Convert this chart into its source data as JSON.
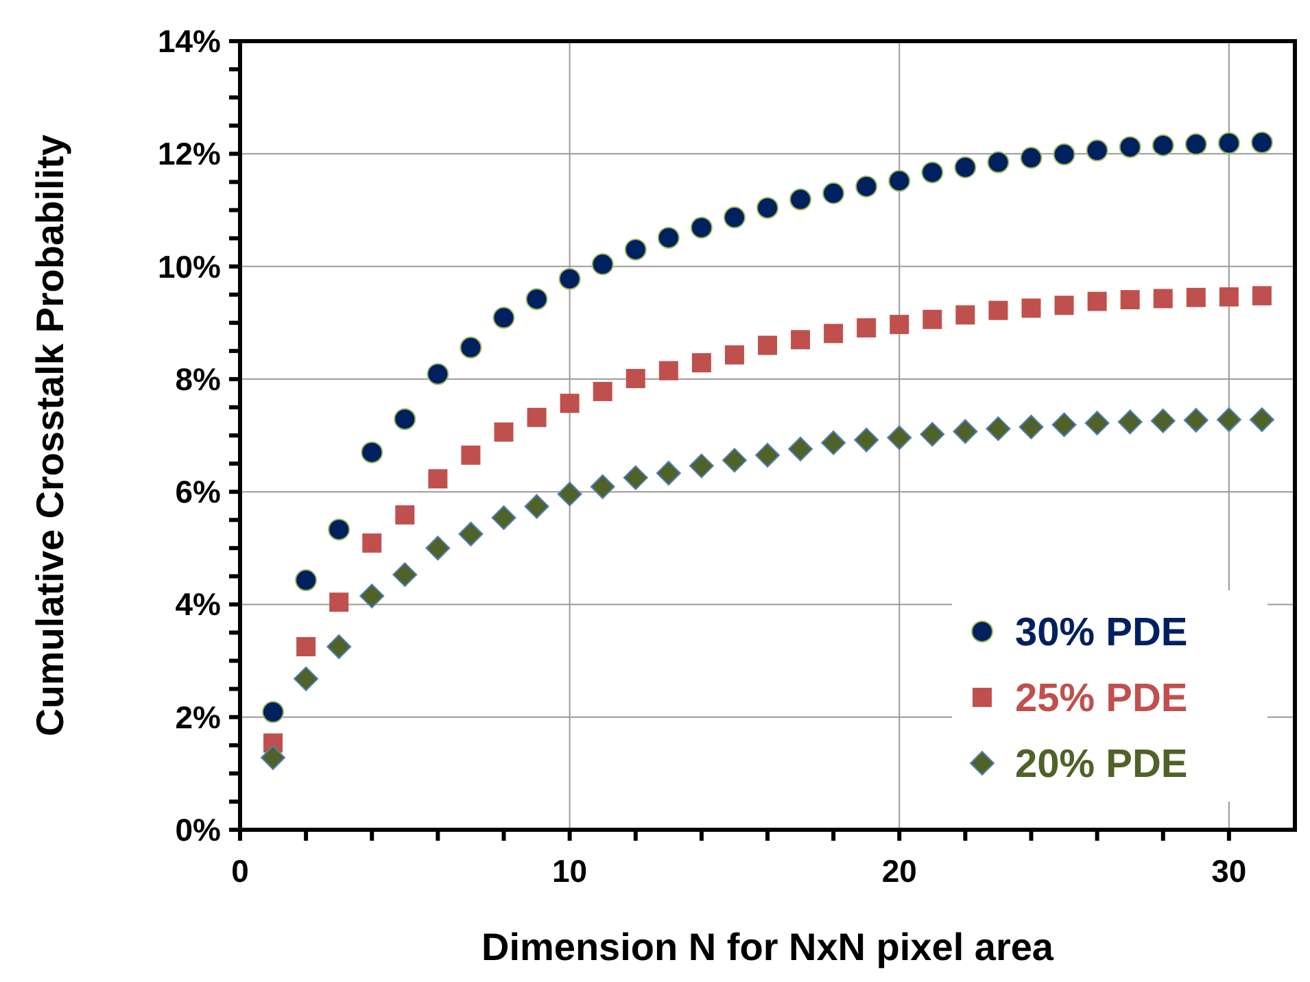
{
  "chart_data": {
    "type": "scatter",
    "xlabel": "Dimension N for NxN pixel area",
    "ylabel": "Cumulative Crosstalk Probability",
    "x": [
      1,
      2,
      3,
      4,
      5,
      6,
      7,
      8,
      9,
      10,
      11,
      12,
      13,
      14,
      15,
      16,
      17,
      18,
      19,
      20,
      21,
      22,
      23,
      24,
      25,
      26,
      27,
      28,
      29,
      30,
      31
    ],
    "series": [
      {
        "name": "30% PDE",
        "color": "#002060",
        "marker": "circle",
        "values": [
          2.09,
          4.43,
          5.33,
          6.7,
          7.29,
          8.09,
          8.56,
          9.09,
          9.42,
          9.78,
          10.04,
          10.3,
          10.51,
          10.69,
          10.87,
          11.04,
          11.19,
          11.3,
          11.42,
          11.52,
          11.67,
          11.76,
          11.85,
          11.93,
          11.99,
          12.06,
          12.12,
          12.15,
          12.17,
          12.19,
          12.2
        ]
      },
      {
        "name": "25% PDE",
        "color": "#c0504d",
        "marker": "square",
        "values": [
          1.54,
          3.25,
          4.04,
          5.09,
          5.59,
          6.23,
          6.65,
          7.06,
          7.32,
          7.57,
          7.78,
          8.01,
          8.15,
          8.29,
          8.43,
          8.6,
          8.7,
          8.81,
          8.91,
          8.97,
          9.06,
          9.14,
          9.22,
          9.26,
          9.31,
          9.38,
          9.41,
          9.43,
          9.45,
          9.46,
          9.48
        ]
      },
      {
        "name": "20% PDE",
        "color": "#4f6228",
        "marker": "diamond",
        "values": [
          1.28,
          2.68,
          3.25,
          4.15,
          4.53,
          5.0,
          5.25,
          5.54,
          5.74,
          5.96,
          6.09,
          6.25,
          6.33,
          6.46,
          6.56,
          6.65,
          6.76,
          6.87,
          6.92,
          6.96,
          7.02,
          7.07,
          7.12,
          7.15,
          7.19,
          7.22,
          7.24,
          7.26,
          7.27,
          7.28,
          7.28
        ]
      }
    ],
    "xlim": [
      0,
      32
    ],
    "xticks": [
      0,
      {
        "value": 2,
        "label": null
      },
      {
        "value": 4,
        "label": null
      },
      {
        "value": 6,
        "label": null
      },
      {
        "value": 8,
        "label": null
      },
      10,
      {
        "value": 12,
        "label": null
      },
      {
        "value": 14,
        "label": null
      },
      {
        "value": 16,
        "label": null
      },
      {
        "value": 18,
        "label": null
      },
      20,
      {
        "value": 22,
        "label": null
      },
      {
        "value": 24,
        "label": null
      },
      {
        "value": 26,
        "label": null
      },
      {
        "value": 28,
        "label": null
      },
      30
    ],
    "ylim": [
      0,
      14
    ],
    "yticks": [
      {
        "value": 0,
        "label": "0%"
      },
      {
        "value": 0.5,
        "label": null
      },
      {
        "value": 1,
        "label": null
      },
      {
        "value": 1.5,
        "label": null
      },
      {
        "value": 2,
        "label": "2%"
      },
      {
        "value": 2.5,
        "label": null
      },
      {
        "value": 3,
        "label": null
      },
      {
        "value": 3.5,
        "label": null
      },
      {
        "value": 4,
        "label": "4%"
      },
      {
        "value": 4.5,
        "label": null
      },
      {
        "value": 5,
        "label": null
      },
      {
        "value": 5.5,
        "label": null
      },
      {
        "value": 6,
        "label": "6%"
      },
      {
        "value": 6.5,
        "label": null
      },
      {
        "value": 7,
        "label": null
      },
      {
        "value": 7.5,
        "label": null
      },
      {
        "value": 8,
        "label": "8%"
      },
      {
        "value": 8.5,
        "label": null
      },
      {
        "value": 9,
        "label": null
      },
      {
        "value": 9.5,
        "label": null
      },
      {
        "value": 10,
        "label": "10%"
      },
      {
        "value": 10.5,
        "label": null
      },
      {
        "value": 11,
        "label": null
      },
      {
        "value": 11.5,
        "label": null
      },
      {
        "value": 12,
        "label": "12%"
      },
      {
        "value": 12.5,
        "label": null
      },
      {
        "value": 13,
        "label": null
      },
      {
        "value": 13.5,
        "label": null
      },
      {
        "value": 14,
        "label": "14%"
      }
    ],
    "grid": true,
    "legend": "bottom right"
  }
}
